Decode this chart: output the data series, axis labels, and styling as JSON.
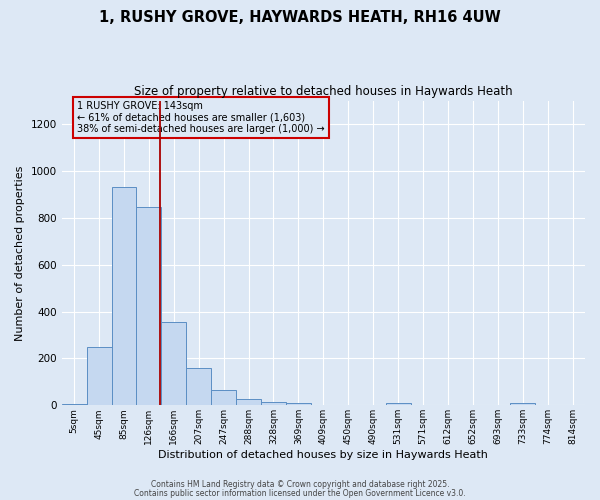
{
  "title": "1, RUSHY GROVE, HAYWARDS HEATH, RH16 4UW",
  "subtitle": "Size of property relative to detached houses in Haywards Heath",
  "xlabel": "Distribution of detached houses by size in Haywards Heath",
  "ylabel": "Number of detached properties",
  "bar_color": "#c5d8f0",
  "bar_edge_color": "#5b8ec4",
  "background_color": "#dde8f5",
  "grid_color": "#ffffff",
  "annotation_box_color": "#cc0000",
  "vline_color": "#aa0000",
  "categories": [
    "5sqm",
    "45sqm",
    "85sqm",
    "126sqm",
    "166sqm",
    "207sqm",
    "247sqm",
    "288sqm",
    "328sqm",
    "369sqm",
    "409sqm",
    "450sqm",
    "490sqm",
    "531sqm",
    "571sqm",
    "612sqm",
    "652sqm",
    "693sqm",
    "733sqm",
    "774sqm",
    "814sqm"
  ],
  "values": [
    5,
    248,
    930,
    845,
    355,
    160,
    65,
    28,
    12,
    10,
    0,
    0,
    0,
    10,
    0,
    0,
    0,
    0,
    10,
    0,
    0
  ],
  "ylim": [
    0,
    1300
  ],
  "yticks": [
    0,
    200,
    400,
    600,
    800,
    1000,
    1200
  ],
  "property_label": "1 RUSHY GROVE: 143sqm",
  "annotation_line1": "← 61% of detached houses are smaller (1,603)",
  "annotation_line2": "38% of semi-detached houses are larger (1,000) →",
  "vline_x_index": 3.45,
  "footer1": "Contains HM Land Registry data © Crown copyright and database right 2025.",
  "footer2": "Contains public sector information licensed under the Open Government Licence v3.0."
}
